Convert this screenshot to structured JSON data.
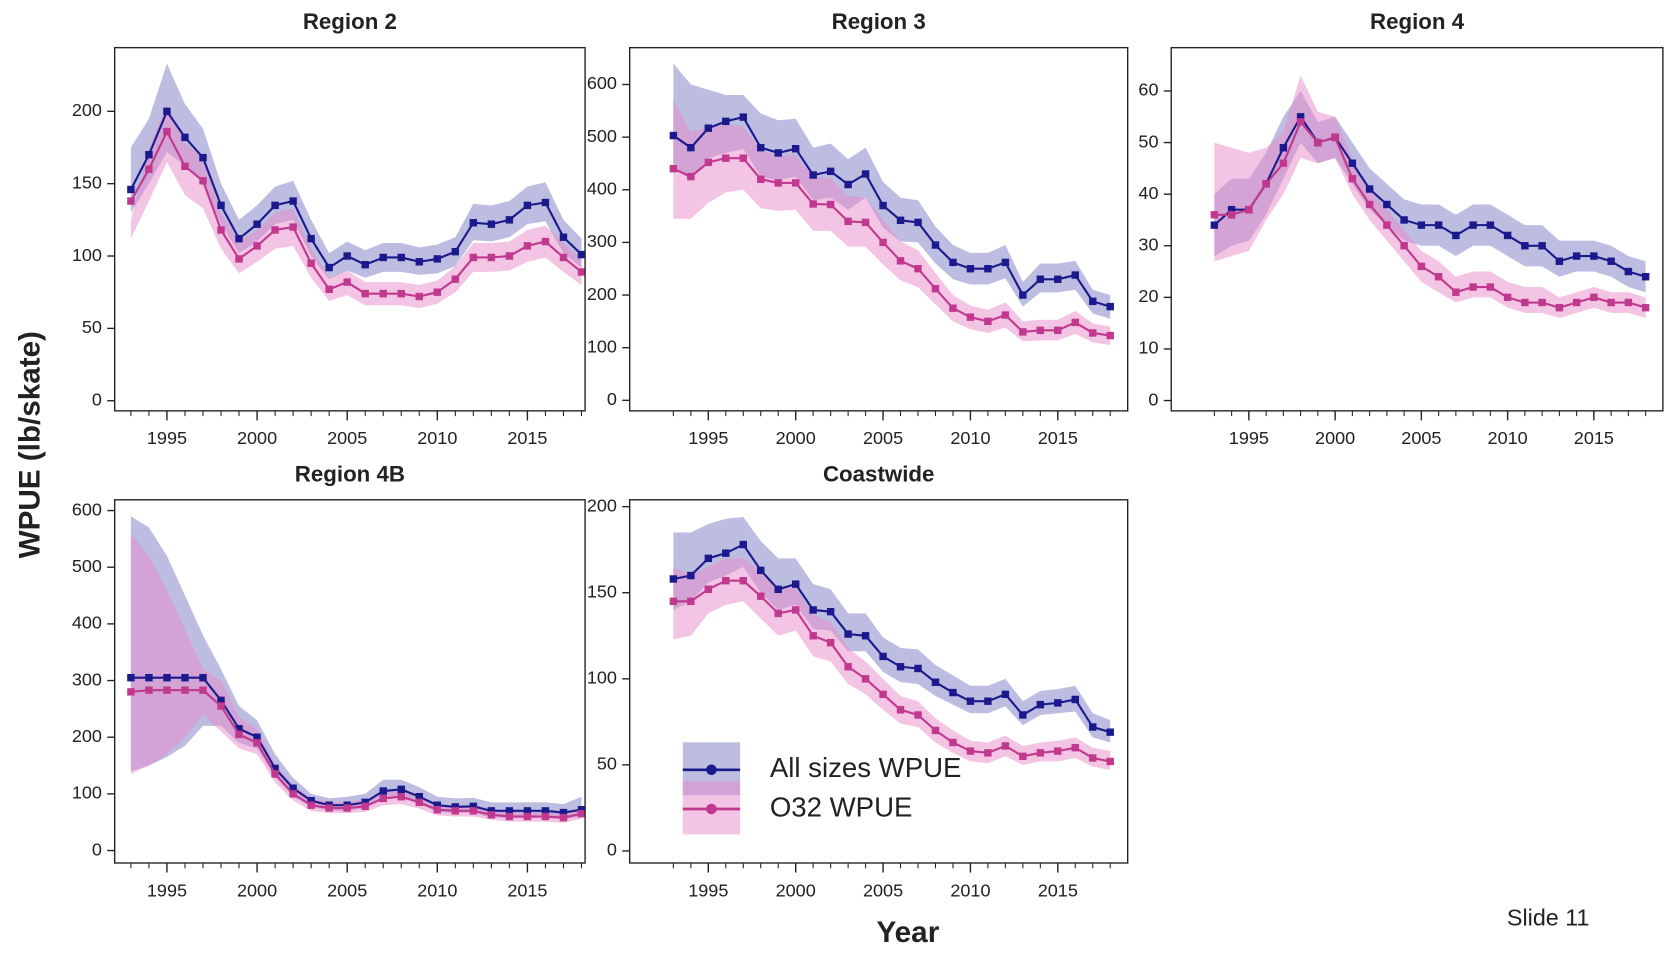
{
  "ylabel": "WPUE (lb/skate)",
  "xlabel": "Year",
  "footer": "Slide 11",
  "chart_data": [
    {
      "type": "line",
      "title": "Region 2",
      "x": [
        1993,
        1994,
        1995,
        1996,
        1997,
        1998,
        1999,
        2000,
        2001,
        2002,
        2003,
        2004,
        2005,
        2006,
        2007,
        2008,
        2009,
        2010,
        2011,
        2012,
        2013,
        2014,
        2015,
        2016,
        2017,
        2018
      ],
      "xlim": [
        1992.1,
        2018.2
      ],
      "xticks": [
        1995,
        2000,
        2005,
        2010,
        2015
      ],
      "ylim": [
        -7,
        244
      ],
      "yticks": [
        0,
        50,
        100,
        150,
        200
      ],
      "series": [
        {
          "name": "All sizes WPUE",
          "color": "#1a1a8c",
          "band_color": "#7b7bc4",
          "values": [
            146,
            170,
            200,
            182,
            168,
            135,
            112,
            122,
            135,
            138,
            112,
            92,
            100,
            94,
            99,
            99,
            96,
            98,
            103,
            123,
            122,
            125,
            135,
            137,
            113,
            101
          ],
          "lower": [
            130,
            150,
            172,
            162,
            150,
            122,
            102,
            110,
            122,
            125,
            100,
            84,
            90,
            85,
            89,
            89,
            87,
            88,
            93,
            111,
            110,
            113,
            122,
            124,
            102,
            92
          ],
          "upper": [
            175,
            195,
            233,
            205,
            188,
            150,
            125,
            135,
            148,
            152,
            125,
            102,
            110,
            104,
            109,
            109,
            106,
            108,
            113,
            136,
            135,
            138,
            148,
            151,
            125,
            112
          ]
        },
        {
          "name": "O32 WPUE",
          "color": "#c0398f",
          "band_color": "#e78ac8",
          "values": [
            138,
            160,
            186,
            162,
            152,
            118,
            98,
            107,
            118,
            120,
            95,
            77,
            82,
            74,
            74,
            74,
            72,
            75,
            84,
            99,
            99,
            100,
            107,
            110,
            99,
            89
          ],
          "lower": [
            112,
            138,
            165,
            142,
            133,
            105,
            88,
            96,
            105,
            107,
            85,
            69,
            73,
            66,
            66,
            66,
            64,
            67,
            75,
            89,
            89,
            90,
            96,
            99,
            89,
            80
          ],
          "upper": [
            125,
            175,
            205,
            178,
            168,
            130,
            110,
            118,
            130,
            133,
            105,
            85,
            90,
            82,
            82,
            82,
            80,
            83,
            93,
            109,
            109,
            110,
            118,
            121,
            109,
            98
          ]
        }
      ]
    },
    {
      "type": "line",
      "title": "Region 3",
      "x": [
        1993,
        1994,
        1995,
        1996,
        1997,
        1998,
        1999,
        2000,
        2001,
        2002,
        2003,
        2004,
        2005,
        2006,
        2007,
        2008,
        2009,
        2010,
        2011,
        2012,
        2013,
        2014,
        2015,
        2016,
        2017,
        2018
      ],
      "xlim": [
        1990.5,
        2019.0
      ],
      "xticks": [
        1995,
        2000,
        2005,
        2010,
        2015
      ],
      "ylim": [
        -20,
        670
      ],
      "yticks": [
        0,
        100,
        200,
        300,
        400,
        500,
        600
      ],
      "series": [
        {
          "name": "All sizes WPUE",
          "color": "#1a1a8c",
          "band_color": "#7b7bc4",
          "values": [
            503,
            480,
            517,
            530,
            538,
            480,
            470,
            478,
            428,
            435,
            410,
            430,
            370,
            342,
            338,
            295,
            262,
            250,
            250,
            262,
            200,
            230,
            230,
            238,
            188,
            178
          ],
          "lower": [
            440,
            420,
            460,
            470,
            478,
            425,
            418,
            425,
            380,
            385,
            362,
            385,
            328,
            302,
            300,
            260,
            230,
            220,
            220,
            232,
            178,
            205,
            205,
            210,
            165,
            155
          ],
          "upper": [
            640,
            600,
            590,
            580,
            580,
            545,
            532,
            535,
            480,
            488,
            458,
            480,
            415,
            385,
            380,
            330,
            295,
            280,
            280,
            295,
            225,
            260,
            260,
            265,
            210,
            200
          ]
        },
        {
          "name": "O32 WPUE",
          "color": "#c0398f",
          "band_color": "#e78ac8",
          "values": [
            440,
            425,
            452,
            460,
            460,
            420,
            413,
            413,
            373,
            372,
            340,
            338,
            300,
            265,
            250,
            212,
            175,
            158,
            150,
            162,
            130,
            133,
            133,
            148,
            128,
            123
          ],
          "lower": [
            345,
            345,
            375,
            395,
            400,
            365,
            360,
            362,
            322,
            322,
            292,
            292,
            258,
            228,
            215,
            182,
            150,
            135,
            128,
            138,
            112,
            114,
            114,
            126,
            110,
            105
          ],
          "upper": [
            570,
            510,
            520,
            525,
            520,
            475,
            465,
            465,
            425,
            422,
            388,
            385,
            342,
            302,
            285,
            242,
            200,
            180,
            172,
            186,
            150,
            153,
            153,
            170,
            146,
            140
          ]
        }
      ]
    },
    {
      "type": "line",
      "title": "Region 4",
      "x": [
        1993,
        1994,
        1995,
        1996,
        1997,
        1998,
        1999,
        2000,
        2001,
        2002,
        2003,
        2004,
        2005,
        2006,
        2007,
        2008,
        2009,
        2010,
        2011,
        2012,
        2013,
        2014,
        2015,
        2016,
        2017,
        2018
      ],
      "xlim": [
        1990.5,
        2019.0
      ],
      "xticks": [
        1995,
        2000,
        2005,
        2010,
        2015
      ],
      "ylim": [
        -2,
        68.4
      ],
      "yticks": [
        0,
        10,
        20,
        30,
        40,
        50,
        60
      ],
      "series": [
        {
          "name": "All sizes WPUE",
          "color": "#1a1a8c",
          "band_color": "#7b7bc4",
          "values": [
            34,
            37,
            37,
            42,
            49,
            55,
            50,
            51,
            46,
            41,
            38,
            35,
            34,
            34,
            32,
            34,
            34,
            32,
            30,
            30,
            27,
            28,
            28,
            27,
            25,
            24
          ],
          "lower": [
            28,
            30,
            31,
            36,
            43,
            50,
            46,
            47,
            42,
            37,
            34,
            31,
            30,
            30,
            28,
            30,
            30,
            28,
            26,
            26,
            24,
            25,
            25,
            24,
            22,
            21
          ],
          "upper": [
            40,
            43,
            43,
            48,
            55,
            60,
            54,
            55,
            50,
            45,
            42,
            39,
            38,
            38,
            36,
            38,
            38,
            36,
            34,
            34,
            31,
            31,
            31,
            30,
            28,
            27
          ]
        },
        {
          "name": "O32 WPUE",
          "color": "#c0398f",
          "band_color": "#e78ac8",
          "values": [
            36,
            36,
            37,
            42,
            46,
            54,
            50,
            51,
            43,
            38,
            34,
            30,
            26,
            24,
            21,
            22,
            22,
            20,
            19,
            19,
            18,
            19,
            20,
            19,
            19,
            18
          ],
          "lower": [
            27,
            28,
            29,
            35,
            40,
            47,
            46,
            47,
            40,
            35,
            31,
            27,
            23,
            21,
            19,
            20,
            20,
            18,
            17,
            17,
            16,
            17,
            18,
            17,
            17,
            16
          ],
          "upper": [
            50,
            49,
            48,
            49,
            52,
            63,
            56,
            55,
            47,
            41,
            37,
            33,
            29,
            27,
            24,
            25,
            25,
            23,
            22,
            22,
            20,
            21,
            22,
            21,
            21,
            20
          ]
        }
      ]
    },
    {
      "type": "line",
      "title": "Region 4B",
      "x": [
        1993,
        1994,
        1995,
        1996,
        1997,
        1998,
        1999,
        2000,
        2001,
        2002,
        2003,
        2004,
        2005,
        2006,
        2007,
        2008,
        2009,
        2010,
        2011,
        2012,
        2013,
        2014,
        2015,
        2016,
        2017,
        2018
      ],
      "xlim": [
        1992.1,
        2018.2
      ],
      "xticks": [
        1995,
        2000,
        2005,
        2010,
        2015
      ],
      "ylim": [
        -22,
        619
      ],
      "yticks": [
        0,
        100,
        200,
        300,
        400,
        500,
        600
      ],
      "series": [
        {
          "name": "All sizes WPUE",
          "color": "#1a1a8c",
          "band_color": "#7b7bc4",
          "values": [
            305,
            305,
            305,
            305,
            305,
            265,
            215,
            200,
            145,
            110,
            88,
            80,
            80,
            85,
            105,
            108,
            95,
            80,
            77,
            78,
            70,
            70,
            70,
            70,
            67,
            72
          ],
          "lower": [
            140,
            150,
            165,
            185,
            220,
            220,
            190,
            180,
            130,
            95,
            78,
            70,
            70,
            75,
            92,
            95,
            82,
            68,
            66,
            67,
            58,
            58,
            58,
            58,
            55,
            60
          ],
          "upper": [
            590,
            570,
            520,
            450,
            380,
            320,
            255,
            230,
            170,
            128,
            100,
            92,
            95,
            100,
            125,
            125,
            112,
            95,
            92,
            93,
            85,
            85,
            85,
            85,
            82,
            95
          ]
        },
        {
          "name": "O32 WPUE",
          "color": "#c0398f",
          "band_color": "#e78ac8",
          "values": [
            280,
            283,
            283,
            283,
            283,
            255,
            205,
            190,
            135,
            100,
            80,
            75,
            75,
            78,
            92,
            95,
            85,
            72,
            70,
            70,
            63,
            60,
            60,
            60,
            58,
            65
          ],
          "lower": [
            135,
            150,
            170,
            200,
            240,
            210,
            180,
            170,
            120,
            88,
            70,
            66,
            66,
            68,
            80,
            82,
            74,
            62,
            60,
            60,
            54,
            51,
            51,
            51,
            49,
            56
          ],
          "upper": [
            560,
            520,
            460,
            390,
            320,
            300,
            235,
            215,
            152,
            115,
            92,
            86,
            86,
            90,
            105,
            108,
            97,
            82,
            80,
            80,
            72,
            69,
            69,
            69,
            67,
            74
          ]
        }
      ]
    },
    {
      "type": "line",
      "title": "Coastwide",
      "legend": "lower left",
      "x": [
        1993,
        1994,
        1995,
        1996,
        1997,
        1998,
        1999,
        2000,
        2001,
        2002,
        2003,
        2004,
        2005,
        2006,
        2007,
        2008,
        2009,
        2010,
        2011,
        2012,
        2013,
        2014,
        2015,
        2016,
        2017,
        2018
      ],
      "xlim": [
        1990.5,
        2019.0
      ],
      "xticks": [
        1995,
        2000,
        2005,
        2010,
        2015
      ],
      "ylim": [
        -7,
        204
      ],
      "yticks": [
        0,
        50,
        100,
        150,
        200
      ],
      "series": [
        {
          "name": "All sizes WPUE",
          "color": "#1a1a8c",
          "band_color": "#7b7bc4",
          "values": [
            158,
            160,
            170,
            173,
            178,
            163,
            152,
            155,
            140,
            139,
            126,
            125,
            113,
            107,
            106,
            98,
            92,
            87,
            87,
            91,
            79,
            85,
            86,
            88,
            72,
            69
          ],
          "lower": [
            140,
            145,
            156,
            160,
            165,
            150,
            140,
            143,
            129,
            128,
            116,
            116,
            104,
            98,
            97,
            90,
            85,
            80,
            80,
            84,
            73,
            79,
            80,
            81,
            66,
            63
          ],
          "upper": [
            185,
            185,
            190,
            193,
            194,
            180,
            170,
            170,
            155,
            152,
            138,
            138,
            124,
            118,
            117,
            108,
            102,
            96,
            96,
            100,
            87,
            93,
            94,
            96,
            80,
            76
          ]
        },
        {
          "name": "O32 WPUE",
          "color": "#c0398f",
          "band_color": "#e78ac8",
          "values": [
            145,
            145,
            152,
            157,
            157,
            148,
            138,
            140,
            125,
            121,
            107,
            100,
            91,
            82,
            79,
            70,
            63,
            58,
            57,
            61,
            55,
            57,
            58,
            60,
            54,
            52
          ],
          "lower": [
            123,
            125,
            138,
            143,
            145,
            135,
            125,
            128,
            113,
            110,
            97,
            91,
            82,
            74,
            72,
            63,
            57,
            52,
            51,
            55,
            50,
            52,
            52,
            54,
            49,
            47
          ],
          "upper": [
            165,
            160,
            165,
            170,
            170,
            162,
            152,
            153,
            137,
            133,
            118,
            110,
            100,
            90,
            87,
            77,
            70,
            64,
            63,
            67,
            61,
            63,
            64,
            66,
            60,
            58
          ]
        }
      ]
    }
  ]
}
